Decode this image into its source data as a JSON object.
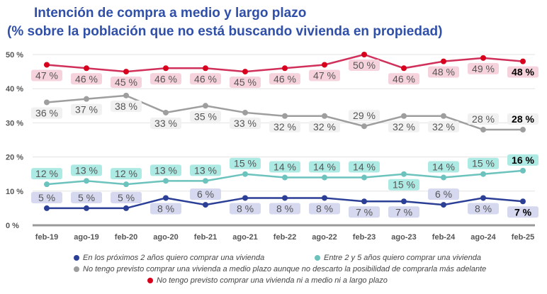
{
  "chart_data": {
    "type": "line",
    "title": "Intención de compra a medio y largo plazo",
    "subtitle": "(% sobre la población que no está buscando vivienda en propiedad)",
    "categories": [
      "feb-19",
      "ago-19",
      "feb-20",
      "ago-20",
      "feb-21",
      "ago-21",
      "feb-22",
      "ago-22",
      "feb-23",
      "ago-23",
      "feb-24",
      "ago-24",
      "feb-25"
    ],
    "ylim": [
      0,
      50
    ],
    "yticks": [
      "0 %",
      "10 %",
      "20 %",
      "30 %",
      "40 %",
      "50 %"
    ],
    "grid": true,
    "legend_position": "bottom",
    "series": [
      {
        "name": "En los próximos 2 años quiero comprar una vivienda",
        "color": "#2b3f96",
        "label_bg": "#d5d8ef",
        "values": [
          5,
          5,
          5,
          8,
          6,
          8,
          8,
          8,
          7,
          7,
          6,
          8,
          7
        ]
      },
      {
        "name": "Entre 2 y 5 años quiero comprar una vivienda",
        "color": "#6cc3bd",
        "label_bg": "#aeeae4",
        "values": [
          12,
          13,
          12,
          13,
          13,
          15,
          14,
          14,
          14,
          15,
          14,
          15,
          16
        ]
      },
      {
        "name": "No tengo previsto comprar una vivienda a medio plazo aunque no descarto la posibilidad de comprarla más adelante",
        "color": "#9e9e9e",
        "label_bg": "#f1f1f1",
        "values": [
          36,
          37,
          38,
          33,
          35,
          33,
          32,
          32,
          29,
          32,
          32,
          28,
          28
        ]
      },
      {
        "name": "No tengo previsto comprar una vivienda ni a medio ni a largo plazo",
        "color": "#d0305a",
        "marker": "#d8001c",
        "label_bg": "#f6d3dc",
        "values": [
          47,
          46,
          45,
          46,
          46,
          45,
          46,
          47,
          50,
          46,
          48,
          49,
          48
        ]
      }
    ]
  }
}
